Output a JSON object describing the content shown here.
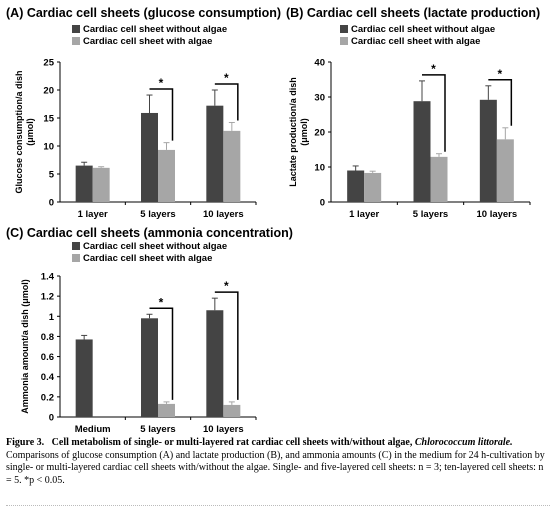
{
  "chart_data": [
    {
      "type": "bar",
      "panel_title": "(A) Cardiac cell sheets (glucose consumption)",
      "ylabel_lines": [
        "Glucose consumption/a dish",
        "(μmol)"
      ],
      "categories": [
        "1 layer",
        "5 layers",
        "10 layers"
      ],
      "ylim": [
        0,
        25
      ],
      "yticks": [
        "0",
        "5",
        "10",
        "15",
        "20",
        "25"
      ],
      "series": [
        {
          "name": "Cardiac cell sheet without algae",
          "color": "#444444",
          "values": [
            6.5,
            15.9,
            17.2
          ],
          "errors": [
            0.6,
            3.2,
            2.8
          ]
        },
        {
          "name": "Cardiac cell sheet with algae",
          "color": "#a6a6a6",
          "values": [
            6.1,
            9.3,
            12.7
          ],
          "errors": [
            0.2,
            1.3,
            1.5
          ]
        }
      ],
      "significance": [
        {
          "category": 1,
          "label": "*"
        },
        {
          "category": 2,
          "label": "*"
        }
      ],
      "legend": "top-left"
    },
    {
      "type": "bar",
      "panel_title": "(B) Cardiac cell sheets (lactate production)",
      "ylabel_lines": [
        "Lactate production/a dish",
        "(μmol)"
      ],
      "categories": [
        "1 layer",
        "5 layers",
        "10 layers"
      ],
      "ylim": [
        0,
        40
      ],
      "yticks": [
        "0",
        "10",
        "20",
        "30",
        "40"
      ],
      "series": [
        {
          "name": "Cardiac cell sheet without algae",
          "color": "#444444",
          "values": [
            9.0,
            28.8,
            29.2
          ],
          "errors": [
            1.3,
            5.8,
            4.0
          ]
        },
        {
          "name": "Cardiac cell sheet with algae",
          "color": "#a6a6a6",
          "values": [
            8.3,
            12.9,
            17.9
          ],
          "errors": [
            0.5,
            0.9,
            3.3
          ]
        }
      ],
      "significance": [
        {
          "category": 1,
          "label": "*"
        },
        {
          "category": 2,
          "label": "*"
        }
      ],
      "legend": "top-left"
    },
    {
      "type": "bar",
      "panel_title": "(C) Cardiac cell sheets (ammonia concentration)",
      "ylabel_lines": [
        "Ammonia amount/a dish (μmol)"
      ],
      "categories": [
        "Medium",
        "5 layers",
        "10 layers"
      ],
      "ylim": [
        0,
        1.4
      ],
      "yticks": [
        "0",
        "0.2",
        "0.4",
        "0.6",
        "0.8",
        "1",
        "1.2",
        "1.4"
      ],
      "series": [
        {
          "name": "Cardiac cell sheet without algae",
          "color": "#444444",
          "values": [
            0.77,
            0.98,
            1.06
          ],
          "errors": [
            0.04,
            0.04,
            0.12
          ]
        },
        {
          "name": "Cardiac cell sheet with algae",
          "color": "#a6a6a6",
          "values": [
            null,
            0.13,
            0.12
          ],
          "errors": [
            null,
            0.02,
            0.03
          ]
        }
      ],
      "significance": [
        {
          "category": 1,
          "label": "*"
        },
        {
          "category": 2,
          "label": "*"
        }
      ],
      "legend": "top-left"
    }
  ],
  "caption": {
    "figure_label": "Figure 3.",
    "title_bold": "Cell metabolism of single- or multi-layered rat cardiac cell sheets with/without algae,",
    "organism": "Chlorococcum littorale.",
    "body": "Comparisons of glucose consumption (A) and lactate production (B), and ammonia amounts (C) in the medium for 24 h-cultivation by single- or multi-layered cardiac cell sheets with/without the algae. Single- and five-layered cell sheets: n = 3; ten-layered cell sheets: n = 5. *p < 0.05."
  }
}
